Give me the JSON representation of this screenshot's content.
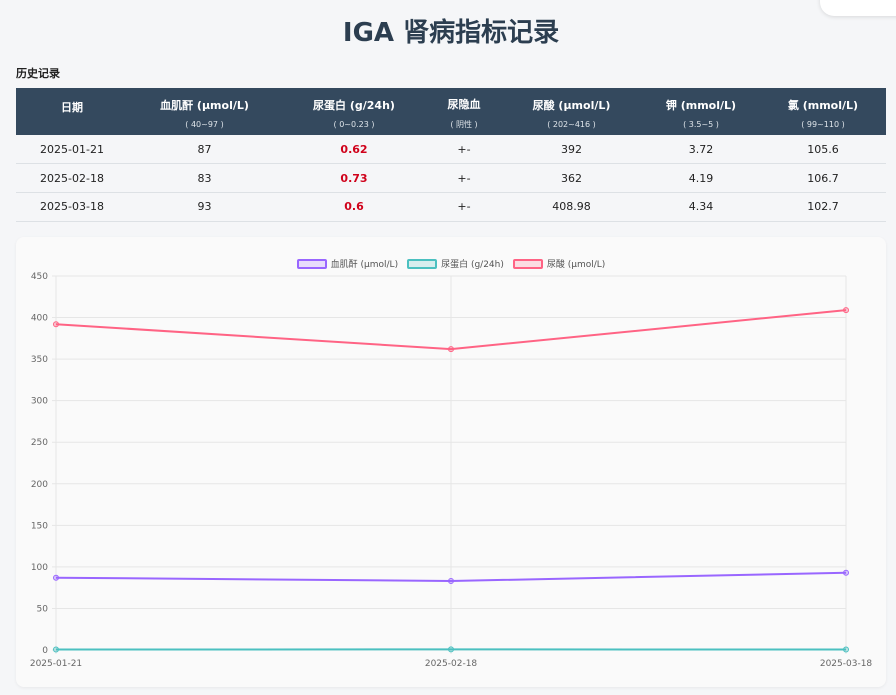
{
  "page": {
    "title": "IGA 肾病指标记录"
  },
  "history": {
    "title": "历史记录",
    "columns": [
      {
        "name": "日期",
        "range": ""
      },
      {
        "name": "血肌酐 (μmol/L)",
        "range": "( 40~97 )"
      },
      {
        "name": "尿蛋白 (g/24h)",
        "range": "( 0~0.23 )"
      },
      {
        "name": "尿隐血",
        "range": "( 阴性 )"
      },
      {
        "name": "尿酸 (μmol/L)",
        "range": "( 202~416 )"
      },
      {
        "name": "钾 (mmol/L)",
        "range": "( 3.5~5 )"
      },
      {
        "name": "氯 (mmol/L)",
        "range": "( 99~110 )"
      }
    ],
    "rows": [
      [
        "2025-01-21",
        "87",
        "0.62",
        "+-",
        "392",
        "3.72",
        "105.6"
      ],
      [
        "2025-02-18",
        "83",
        "0.73",
        "+-",
        "362",
        "4.19",
        "106.7"
      ],
      [
        "2025-03-18",
        "93",
        "0.6",
        "+-",
        "408.98",
        "4.34",
        "102.7"
      ]
    ],
    "abnormal_column": 2
  },
  "colors": {
    "header_bg": "#34495e",
    "abnormal": "#d0021b"
  },
  "chart_data": {
    "type": "line",
    "x": [
      "2025-01-21",
      "2025-02-18",
      "2025-03-18"
    ],
    "series": [
      {
        "name": "血肌酐 (μmol/L)",
        "values": [
          87,
          83,
          93
        ],
        "color": "#9966ff"
      },
      {
        "name": "尿蛋白 (g/24h)",
        "values": [
          0.62,
          0.73,
          0.6
        ],
        "color": "#4bc0c0"
      },
      {
        "name": "尿酸 (μmol/L)",
        "values": [
          392,
          362,
          408.98
        ],
        "color": "#ff6384"
      }
    ],
    "ylim": [
      0,
      450
    ],
    "yticks": [
      0,
      50,
      100,
      150,
      200,
      250,
      300,
      350,
      400,
      450
    ],
    "grid": true,
    "legend": "top"
  }
}
